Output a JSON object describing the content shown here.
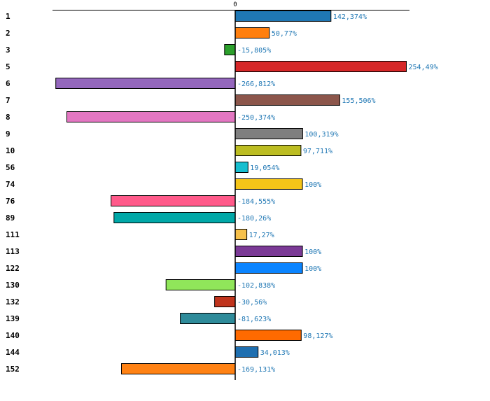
{
  "chart_data": {
    "type": "bar",
    "orientation": "horizontal",
    "title": "",
    "xlabel": "",
    "ylabel": "",
    "xlim": [
      -300,
      290
    ],
    "zero_tick_label": "0",
    "bar_edge_color": "#000000",
    "label_color": "#1f77b4",
    "categories": [
      "1",
      "2",
      "3",
      "5",
      "6",
      "7",
      "8",
      "9",
      "10",
      "56",
      "74",
      "76",
      "89",
      "111",
      "113",
      "122",
      "130",
      "132",
      "139",
      "140",
      "144",
      "152"
    ],
    "values": [
      142.374,
      50.77,
      -15.805,
      254.49,
      -266.812,
      155.506,
      -250.374,
      100.319,
      97.711,
      19.054,
      100,
      -184.555,
      -180.26,
      17.27,
      100,
      100,
      -102.838,
      -30.56,
      -81.623,
      98.127,
      34.013,
      -169.131
    ],
    "labels": [
      "142,374%",
      "50,77%",
      "-15,805%",
      "254,49%",
      "-266,812%",
      "155,506%",
      "-250,374%",
      "100,319%",
      "97,711%",
      "19,054%",
      "100%",
      "-184,555%",
      "-180,26%",
      "17,27%",
      "100%",
      "100%",
      "-102,838%",
      "-30,56%",
      "-81,623%",
      "98,127%",
      "34,013%",
      "-169,131%"
    ],
    "colors": [
      "#1f77b4",
      "#ff7f0e",
      "#2ca02c",
      "#d62728",
      "#9467bd",
      "#8c564b",
      "#e377c2",
      "#7f7f7f",
      "#bcbd22",
      "#17becf",
      "#f5c518",
      "#ff5a8a",
      "#00a8a8",
      "#f7c04a",
      "#7b3a96",
      "#0a84ff",
      "#90e65a",
      "#c0341d",
      "#2e8b9a",
      "#ff6a00",
      "#1f6fb0",
      "#ff8214"
    ]
  }
}
